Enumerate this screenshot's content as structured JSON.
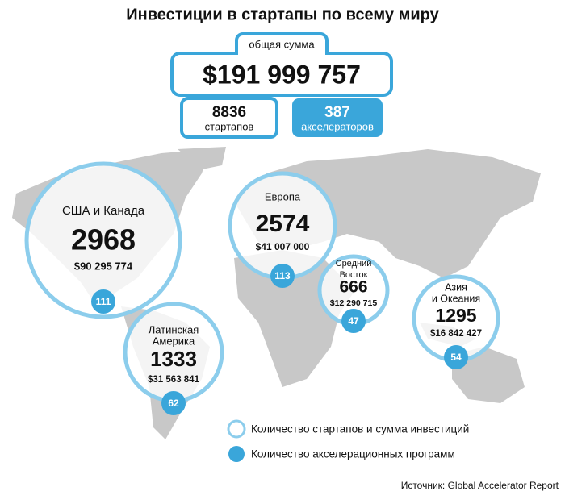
{
  "title": "Инвестиции в стартапы по всему миру",
  "summary": {
    "total_label": "общая сумма",
    "total": "$191 999 757",
    "startups": {
      "value": "8836",
      "label": "стартапов"
    },
    "accelerators": {
      "value": "387",
      "label": "акселераторов"
    }
  },
  "regions": [
    {
      "name": [
        "США и Канада"
      ],
      "startups": "2968",
      "amount": "$90 295 774",
      "accelerators": "111"
    },
    {
      "name": [
        "Европа"
      ],
      "startups": "2574",
      "amount": "$41 007 000",
      "accelerators": "113"
    },
    {
      "name": [
        "Средний",
        "Восток"
      ],
      "startups": "666",
      "amount": "$12 290 715",
      "accelerators": "47"
    },
    {
      "name": [
        "Азия",
        "и Океания"
      ],
      "startups": "1295",
      "amount": "$16 842 427",
      "accelerators": "54"
    },
    {
      "name": [
        "Латинская",
        "Америка"
      ],
      "startups": "1333",
      "amount": "$31 563 841",
      "accelerators": "62"
    }
  ],
  "legend": {
    "ring": "Количество стартапов и сумма инвестиций",
    "dot": "Количество акселерационных программ"
  },
  "source": "Источник: Global Accelerator Report"
}
